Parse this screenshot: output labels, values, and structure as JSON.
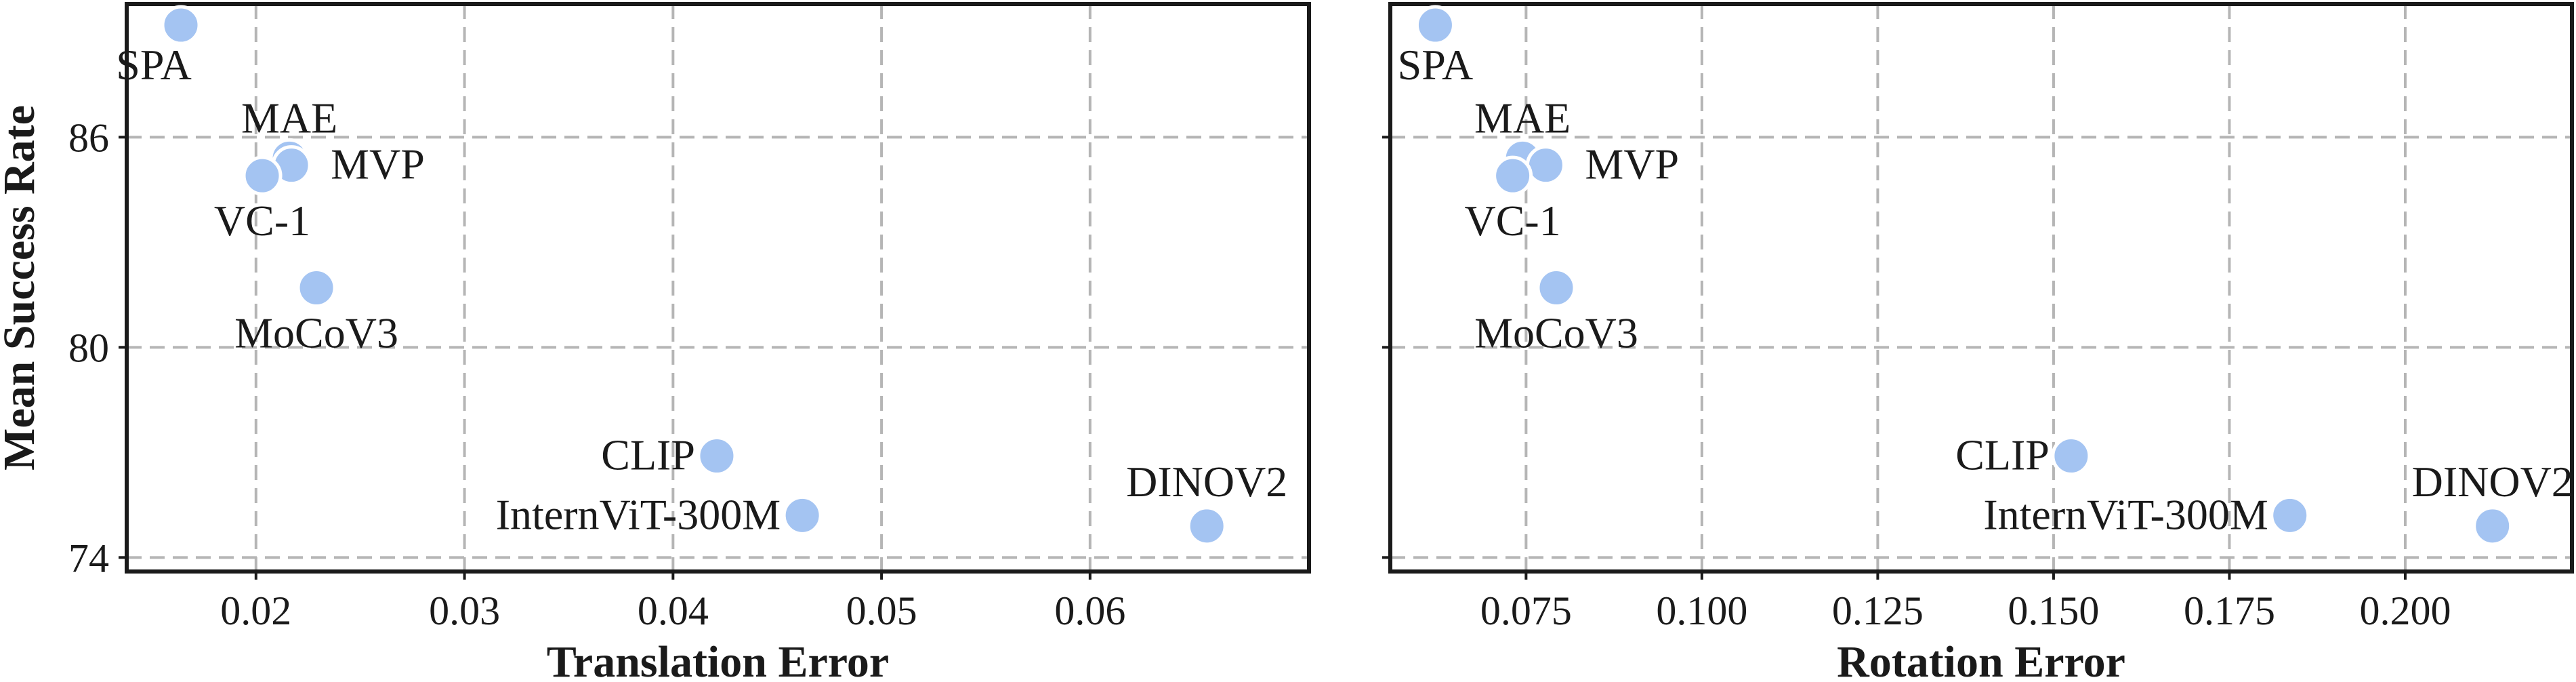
{
  "chart_data": [
    {
      "type": "scatter",
      "xlabel": "Translation Error",
      "ylabel": "Mean Success Rate",
      "xlim": [
        0.0138,
        0.0705
      ],
      "ylim": [
        73.6,
        89.8
      ],
      "xticks": [
        0.02,
        0.03,
        0.04,
        0.05,
        0.06
      ],
      "xtick_labels": [
        "0.02",
        "0.03",
        "0.04",
        "0.05",
        "0.06"
      ],
      "yticks": [
        74,
        80,
        86
      ],
      "ytick_labels": [
        "74",
        "80",
        "86"
      ],
      "grid": true,
      "marker_color": "#a4c4f2",
      "points": [
        {
          "label": "SPA",
          "x": 0.0164,
          "y": 89.2
        },
        {
          "label": "MAE",
          "x": 0.0216,
          "y": 85.4
        },
        {
          "label": "MVP",
          "x": 0.0217,
          "y": 85.2
        },
        {
          "label": "VC-1",
          "x": 0.0203,
          "y": 84.9
        },
        {
          "label": "MoCoV3",
          "x": 0.0229,
          "y": 81.7
        },
        {
          "label": "CLIP",
          "x": 0.0421,
          "y": 76.9
        },
        {
          "label": "InternViT-300M",
          "x": 0.0462,
          "y": 75.2
        },
        {
          "label": "DINOV2",
          "x": 0.0656,
          "y": 74.9
        }
      ]
    },
    {
      "type": "scatter",
      "xlabel": "Rotation Error",
      "ylabel": "",
      "xlim": [
        0.0557,
        0.2237
      ],
      "ylim": [
        73.6,
        89.8
      ],
      "xticks": [
        0.075,
        0.1,
        0.125,
        0.15,
        0.175,
        0.2
      ],
      "xtick_labels": [
        "0.075",
        "0.100",
        "0.125",
        "0.150",
        "0.175",
        "0.200"
      ],
      "yticks": [
        74,
        80,
        86
      ],
      "ytick_labels": [
        "",
        "",
        ""
      ],
      "grid": true,
      "marker_color": "#a4c4f2",
      "points": [
        {
          "label": "SPA",
          "x": 0.0621,
          "y": 89.2
        },
        {
          "label": "MAE",
          "x": 0.0745,
          "y": 85.4
        },
        {
          "label": "MVP",
          "x": 0.0778,
          "y": 85.2
        },
        {
          "label": "VC-1",
          "x": 0.0731,
          "y": 84.9
        },
        {
          "label": "MoCoV3",
          "x": 0.0793,
          "y": 81.7
        },
        {
          "label": "CLIP",
          "x": 0.1525,
          "y": 76.9
        },
        {
          "label": "InternViT-300M",
          "x": 0.1836,
          "y": 75.2
        },
        {
          "label": "DINOV2",
          "x": 0.2124,
          "y": 74.9
        }
      ]
    }
  ]
}
